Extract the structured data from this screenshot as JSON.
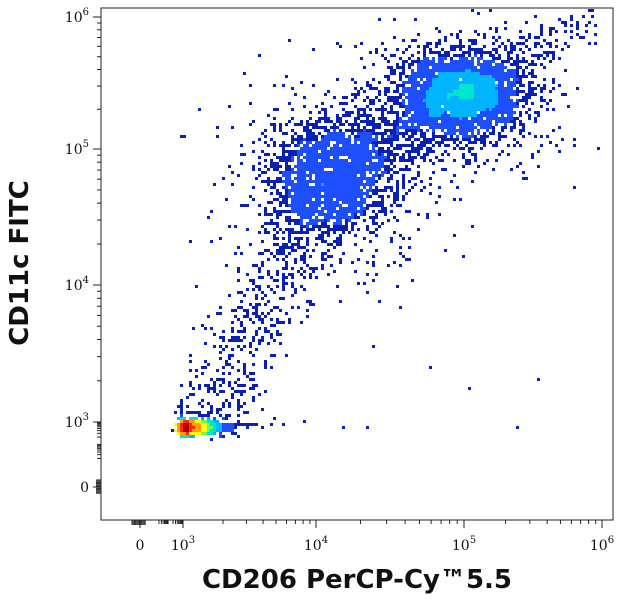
{
  "chart_data": {
    "type": "scatter",
    "subtype": "flow-cytometry-density-plot",
    "title": "",
    "xlabel": "CD206 PerCP-Cy™5.5",
    "ylabel": "CD11c FITC",
    "x_scale": "biexponential",
    "y_scale": "biexponential",
    "xlim": [
      -200,
      1100000
    ],
    "ylim": [
      -200,
      1100000
    ],
    "grid": false,
    "x_ticks": [
      {
        "value": 0,
        "base": "0",
        "exp": ""
      },
      {
        "value": 1000,
        "base": "10",
        "exp": "3"
      },
      {
        "value": 10000,
        "base": "10",
        "exp": "4"
      },
      {
        "value": 100000,
        "base": "10",
        "exp": "5"
      },
      {
        "value": 1000000,
        "base": "10",
        "exp": "6"
      }
    ],
    "y_ticks": [
      {
        "value": 0,
        "base": "0",
        "exp": ""
      },
      {
        "value": 1000,
        "base": "10",
        "exp": "3"
      },
      {
        "value": 10000,
        "base": "10",
        "exp": "4"
      },
      {
        "value": 100000,
        "base": "10",
        "exp": "5"
      },
      {
        "value": 1000000,
        "base": "10",
        "exp": "6"
      }
    ],
    "colormap": [
      "#0a1fb4",
      "#1e4fff",
      "#00b4ff",
      "#00e6c8",
      "#64ff50",
      "#ffff00",
      "#ffa000",
      "#ff2800",
      "#b40000"
    ],
    "populations": [
      {
        "name": "low-low cluster",
        "center_x": 1150,
        "center_y": 560,
        "spread_log_x": 0.1,
        "spread_log_y": 0.1,
        "relative_density": 1.0
      },
      {
        "name": "mid cluster",
        "center_x": 12000,
        "center_y": 60000,
        "spread_log_x": 0.2,
        "spread_log_y": 0.2,
        "relative_density": 0.45
      },
      {
        "name": "high-high cluster",
        "center_x": 100000,
        "center_y": 260000,
        "spread_log_x": 0.2,
        "spread_log_y": 0.14,
        "relative_density": 0.95
      }
    ]
  }
}
